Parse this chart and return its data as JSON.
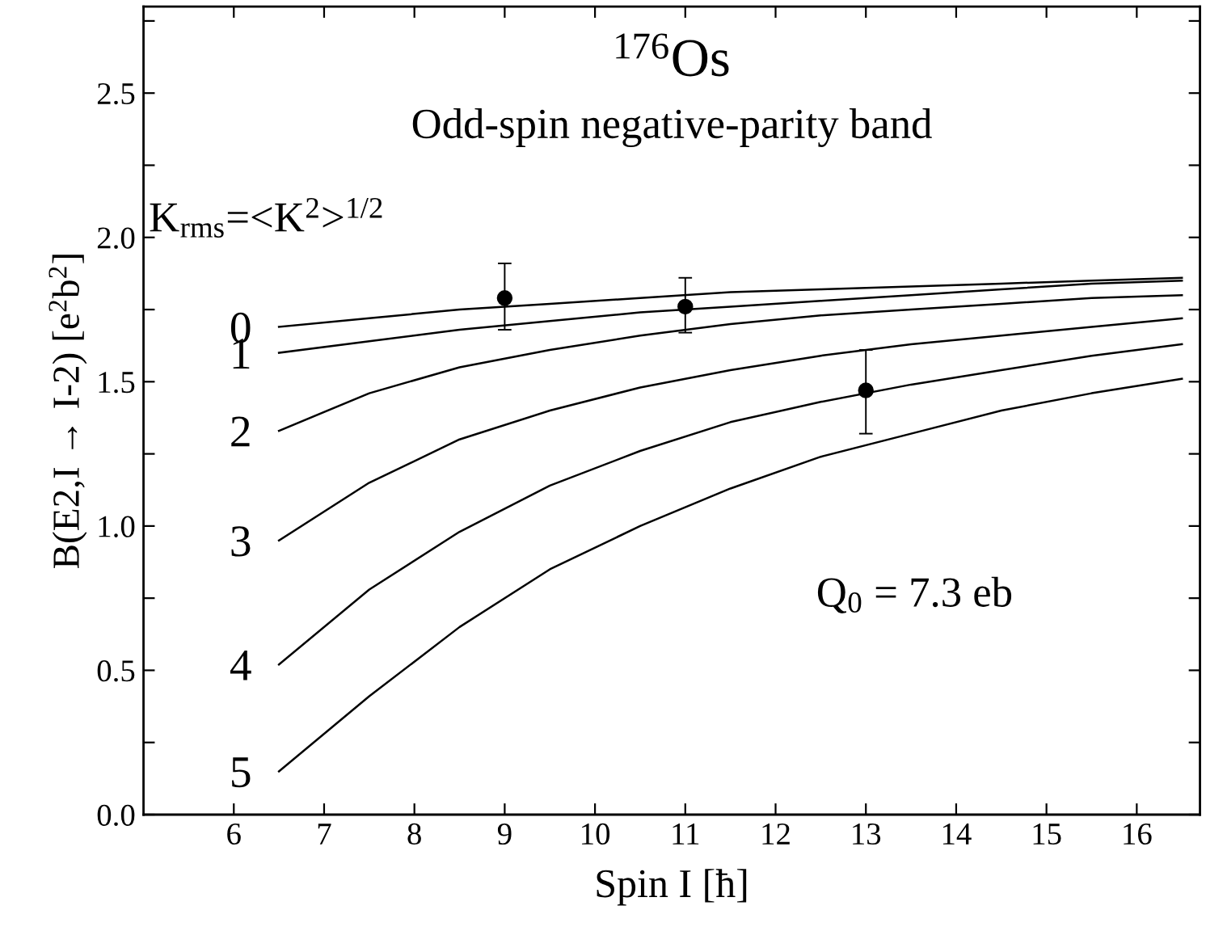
{
  "chart_data": {
    "type": "line",
    "title": "$^{176}$Os",
    "subtitle": "Odd-spin negative-parity band",
    "xlabel": "Spin I [ħ]",
    "ylabel": "B(E2,I → I-2) [e$^{2}$b$^{2}$]",
    "legend_title": "K$_{rms}$=<K$^{2}$>$^{1/2}$",
    "annotations": [
      "Q$_{0}$ = 7.3 eb"
    ],
    "xlim": [
      5.0,
      16.7
    ],
    "ylim": [
      0,
      2.8
    ],
    "xticks": [
      6,
      7,
      8,
      9,
      10,
      11,
      12,
      13,
      14,
      15,
      16
    ],
    "yticks": [
      {
        "value": 0.0,
        "label": "0.0"
      },
      {
        "value": 0.25,
        "label": null
      },
      {
        "value": 0.5,
        "label": "0.5"
      },
      {
        "value": 0.75,
        "label": null
      },
      {
        "value": 1.0,
        "label": "1.0"
      },
      {
        "value": 1.25,
        "label": null
      },
      {
        "value": 1.5,
        "label": "1.5"
      },
      {
        "value": 1.75,
        "label": null
      },
      {
        "value": 2.0,
        "label": "2.0"
      },
      {
        "value": 2.25,
        "label": null
      },
      {
        "value": 2.5,
        "label": "2.5"
      },
      {
        "value": 2.75,
        "label": null
      }
    ],
    "grid": false,
    "legend": false,
    "marker": "none",
    "line_style": "solid",
    "x": [
      6.5,
      7.5,
      8.5,
      9.5,
      10.5,
      11.5,
      12.5,
      13.5,
      14.5,
      15.5,
      16.5
    ],
    "series": [
      {
        "name": "0",
        "color": "#000000",
        "values": [
          1.69,
          1.72,
          1.75,
          1.77,
          1.79,
          1.81,
          1.82,
          1.83,
          1.84,
          1.85,
          1.86
        ]
      },
      {
        "name": "1",
        "color": "#000000",
        "values": [
          1.6,
          1.64,
          1.68,
          1.71,
          1.74,
          1.76,
          1.78,
          1.8,
          1.82,
          1.84,
          1.85
        ]
      },
      {
        "name": "2",
        "color": "#000000",
        "values": [
          1.33,
          1.46,
          1.55,
          1.61,
          1.66,
          1.7,
          1.73,
          1.75,
          1.77,
          1.79,
          1.8
        ]
      },
      {
        "name": "3",
        "color": "#000000",
        "values": [
          0.95,
          1.15,
          1.3,
          1.4,
          1.48,
          1.54,
          1.59,
          1.63,
          1.66,
          1.69,
          1.72
        ]
      },
      {
        "name": "4",
        "color": "#000000",
        "values": [
          0.52,
          0.78,
          0.98,
          1.14,
          1.26,
          1.36,
          1.43,
          1.49,
          1.54,
          1.59,
          1.63
        ]
      },
      {
        "name": "5",
        "color": "#000000",
        "values": [
          0.15,
          0.41,
          0.65,
          0.85,
          1.0,
          1.13,
          1.24,
          1.32,
          1.4,
          1.46,
          1.51
        ]
      },
      {
        "type": "scatter",
        "marker": "circle",
        "color": "#000000",
        "x": [
          9,
          11,
          13
        ],
        "values": [
          1.79,
          1.76,
          1.47
        ],
        "errors": [
          [
            1.68,
            1.91
          ],
          [
            1.67,
            1.86
          ],
          [
            1.32,
            1.61
          ]
        ]
      }
    ]
  }
}
